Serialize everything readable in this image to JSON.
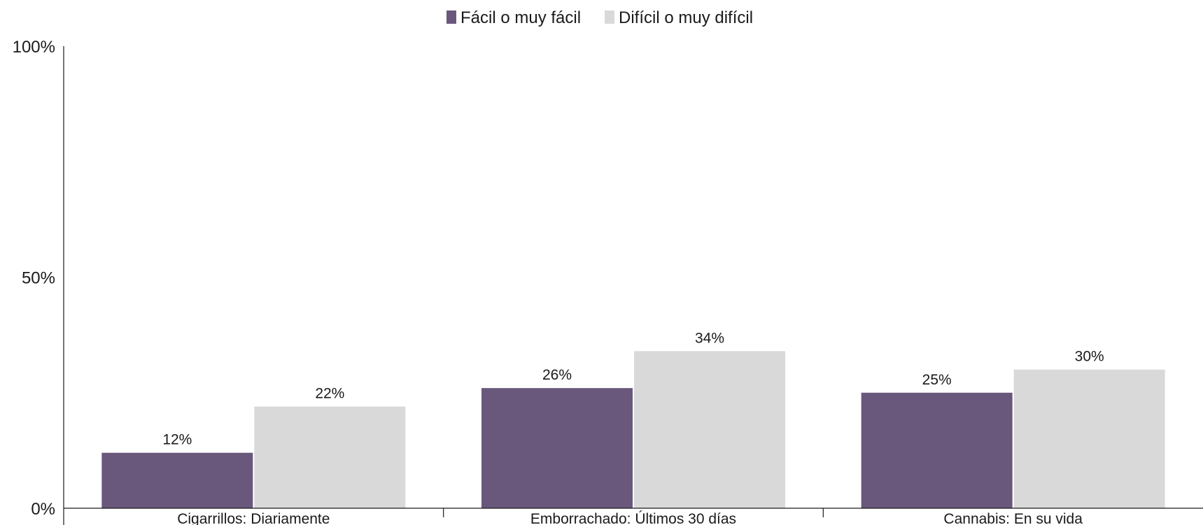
{
  "chart_data": {
    "type": "bar",
    "categories": [
      "Cigarrillos: Diariamente",
      "Emborrachado: Últimos 30 días",
      "Cannabis: En su vida"
    ],
    "series": [
      {
        "name": "Fácil o muy fácil",
        "values": [
          12,
          26,
          25
        ],
        "color": "#6a587c"
      },
      {
        "name": "Difícil o muy difícil",
        "values": [
          22,
          34,
          30
        ],
        "color": "#d9d9d9"
      }
    ],
    "data_labels": [
      [
        "12%",
        "26%",
        "25%"
      ],
      [
        "22%",
        "34%",
        "30%"
      ]
    ],
    "y_ticks": [
      {
        "value": 0,
        "label": "0%"
      },
      {
        "value": 50,
        "label": "50%"
      },
      {
        "value": 100,
        "label": "100%"
      }
    ],
    "ylim": [
      0,
      100
    ],
    "grid": false,
    "legend_position": "top-center"
  }
}
